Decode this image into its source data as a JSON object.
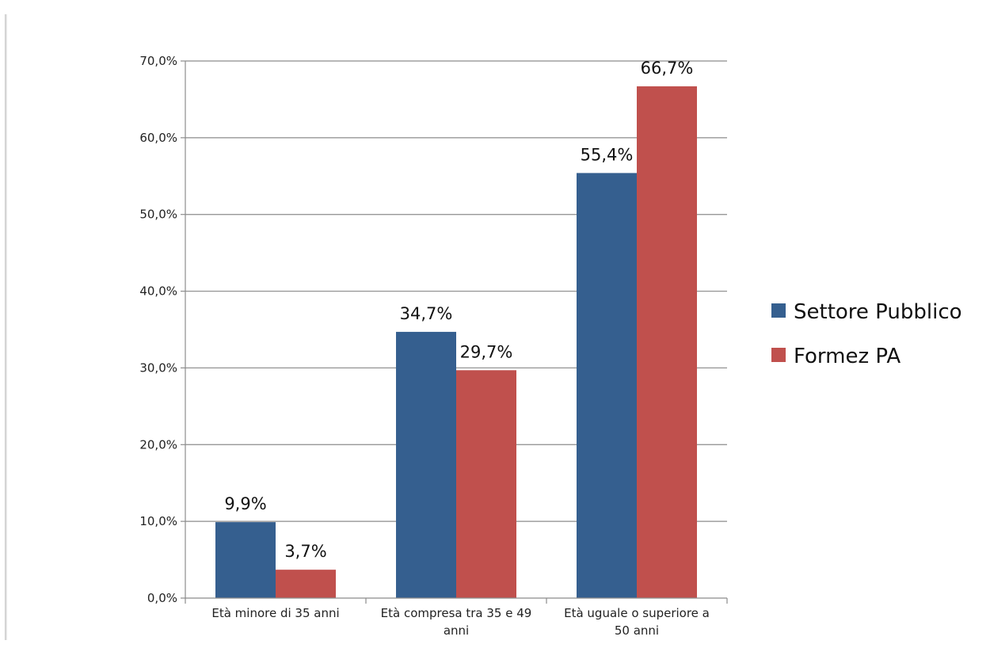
{
  "chart_data": {
    "type": "bar",
    "categories": [
      [
        "Età minore di 35 anni"
      ],
      [
        "Età compresa tra 35 e 49",
        "anni"
      ],
      [
        "Età uguale o superiore a",
        "50 anni"
      ]
    ],
    "series": [
      {
        "name": "Settore Pubblico",
        "color": "#355F8F",
        "values": [
          9.9,
          34.7,
          55.4
        ],
        "labels": [
          "9,9%",
          "34,7%",
          "55,4%"
        ]
      },
      {
        "name": "Formez PA",
        "color": "#C0504D",
        "values": [
          3.7,
          29.7,
          66.7
        ],
        "labels": [
          "3,7%",
          "29,7%",
          "66,7%"
        ]
      }
    ],
    "ylim": [
      0,
      70
    ],
    "yticks": [
      {
        "value": 0,
        "label": "0,0%"
      },
      {
        "value": 10,
        "label": "10,0%"
      },
      {
        "value": 20,
        "label": "20,0%"
      },
      {
        "value": 30,
        "label": "30,0%"
      },
      {
        "value": 40,
        "label": "40,0%"
      },
      {
        "value": 50,
        "label": "50,0%"
      },
      {
        "value": 60,
        "label": "60,0%"
      },
      {
        "value": 70,
        "label": "70,0%"
      }
    ],
    "grid": true,
    "legend_position": "right",
    "title": "",
    "xlabel": "",
    "ylabel": ""
  }
}
